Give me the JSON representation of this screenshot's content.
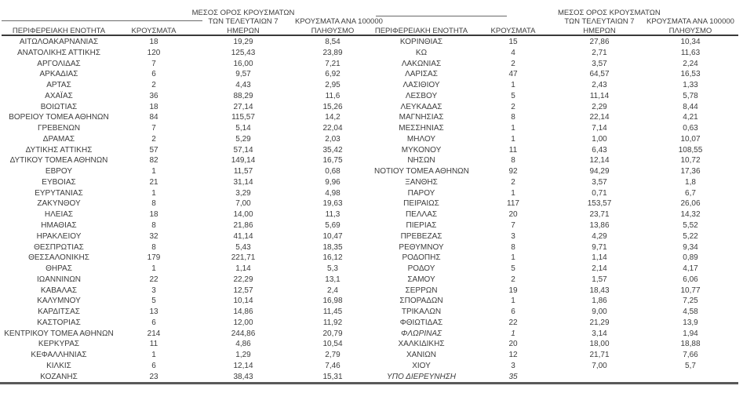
{
  "page": {
    "background": "#ffffff",
    "text_color": "#3c3c3c",
    "thin_line_color": "#6a6a6a",
    "header_line_color": "#3a3a3a",
    "bottom_line_color": "#595959"
  },
  "columns": {
    "region": "ΠΕΡΙΦΕΡΕΙΑΚΗ ΕΝΟΤΗΤΑ",
    "cases": "ΚΡΟΥΣΜΑΤΑ",
    "avg7_line1": "ΜΕΣΟΣ ΟΡΟΣ ΚΡΟΥΣΜΑΤΩΝ",
    "avg7_line2": "ΤΩΝ ΤΕΛΕΥΤΑΙΩΝ 7",
    "avg7_line3": "ΗΜΕΡΩΝ",
    "per100k_line1": "ΚΡΟΥΣΜΑΤΑ ΑΝΑ 100000",
    "per100k_line2": "ΠΛΗΘΥΣΜΟ"
  },
  "tables": [
    {
      "rows": [
        {
          "region": "ΑΙΤΩΛΟΑΚΑΡΝΑΝΙΑΣ",
          "cases": "18",
          "avg7": "19,29",
          "per100k": "8,54"
        },
        {
          "region": "ΑΝΑΤΟΛΙΚΗΣ ΑΤΤΙΚΗΣ",
          "cases": "120",
          "avg7": "125,43",
          "per100k": "23,89"
        },
        {
          "region": "ΑΡΓΟΛΙΔΑΣ",
          "cases": "7",
          "avg7": "16,00",
          "per100k": "7,21"
        },
        {
          "region": "ΑΡΚΑΔΙΑΣ",
          "cases": "6",
          "avg7": "9,57",
          "per100k": "6,92"
        },
        {
          "region": "ΑΡΤΑΣ",
          "cases": "2",
          "avg7": "4,43",
          "per100k": "2,95"
        },
        {
          "region": "ΑΧΑΪΑΣ",
          "cases": "36",
          "avg7": "88,29",
          "per100k": "11,6"
        },
        {
          "region": "ΒΟΙΩΤΙΑΣ",
          "cases": "18",
          "avg7": "27,14",
          "per100k": "15,26"
        },
        {
          "region": "ΒΟΡΕΙΟΥ ΤΟΜΕΑ ΑΘΗΝΩΝ",
          "cases": "84",
          "avg7": "115,57",
          "per100k": "14,2"
        },
        {
          "region": "ΓΡΕΒΕΝΩΝ",
          "cases": "7",
          "avg7": "5,14",
          "per100k": "22,04"
        },
        {
          "region": "ΔΡΑΜΑΣ",
          "cases": "2",
          "avg7": "5,29",
          "per100k": "2,03"
        },
        {
          "region": "ΔΥΤΙΚΗΣ ΑΤΤΙΚΗΣ",
          "cases": "57",
          "avg7": "57,14",
          "per100k": "35,42"
        },
        {
          "region": "ΔΥΤΙΚΟΥ ΤΟΜΕΑ ΑΘΗΝΩΝ",
          "cases": "82",
          "avg7": "149,14",
          "per100k": "16,75"
        },
        {
          "region": "ΕΒΡΟΥ",
          "cases": "1",
          "avg7": "11,57",
          "per100k": "0,68"
        },
        {
          "region": "ΕΥΒΟΙΑΣ",
          "cases": "21",
          "avg7": "31,14",
          "per100k": "9,96"
        },
        {
          "region": "ΕΥΡΥΤΑΝΙΑΣ",
          "cases": "1",
          "avg7": "3,29",
          "per100k": "4,98"
        },
        {
          "region": "ΖΑΚΥΝΘΟΥ",
          "cases": "8",
          "avg7": "7,00",
          "per100k": "19,63"
        },
        {
          "region": "ΗΛΕΙΑΣ",
          "cases": "18",
          "avg7": "14,00",
          "per100k": "11,3"
        },
        {
          "region": "ΗΜΑΘΙΑΣ",
          "cases": "8",
          "avg7": "21,86",
          "per100k": "5,69"
        },
        {
          "region": "ΗΡΑΚΛΕΙΟΥ",
          "cases": "32",
          "avg7": "41,14",
          "per100k": "10,47"
        },
        {
          "region": "ΘΕΣΠΡΩΤΙΑΣ",
          "cases": "8",
          "avg7": "5,43",
          "per100k": "18,35"
        },
        {
          "region": "ΘΕΣΣΑΛΟΝΙΚΗΣ",
          "cases": "179",
          "avg7": "221,71",
          "per100k": "16,12"
        },
        {
          "region": "ΘΗΡΑΣ",
          "cases": "1",
          "avg7": "1,14",
          "per100k": "5,3"
        },
        {
          "region": "ΙΩΑΝΝΙΝΩΝ",
          "cases": "22",
          "avg7": "22,29",
          "per100k": "13,1"
        },
        {
          "region": "ΚΑΒΑΛΑΣ",
          "cases": "3",
          "avg7": "12,57",
          "per100k": "2,4"
        },
        {
          "region": "ΚΑΛΥΜΝΟΥ",
          "cases": "5",
          "avg7": "10,14",
          "per100k": "16,98"
        },
        {
          "region": "ΚΑΡΔΙΤΣΑΣ",
          "cases": "13",
          "avg7": "14,86",
          "per100k": "11,45"
        },
        {
          "region": "ΚΑΣΤΟΡΙΑΣ",
          "cases": "6",
          "avg7": "12,00",
          "per100k": "11,92"
        },
        {
          "region": "ΚΕΝΤΡΙΚΟΥ ΤΟΜΕΑ ΑΘΗΝΩΝ",
          "cases": "214",
          "avg7": "244,86",
          "per100k": "20,79"
        },
        {
          "region": "ΚΕΡΚΥΡΑΣ",
          "cases": "11",
          "avg7": "4,86",
          "per100k": "10,54"
        },
        {
          "region": "ΚΕΦΑΛΛΗΝΙΑΣ",
          "cases": "1",
          "avg7": "1,29",
          "per100k": "2,79"
        },
        {
          "region": "ΚΙΛΚΙΣ",
          "cases": "6",
          "avg7": "12,14",
          "per100k": "7,46"
        },
        {
          "region": "ΚΟΖΑΝΗΣ",
          "cases": "23",
          "avg7": "38,43",
          "per100k": "15,31"
        }
      ]
    },
    {
      "rows": [
        {
          "region": "ΚΟΡΙΝΘΙΑΣ",
          "cases": "15",
          "avg7": "27,86",
          "per100k": "10,34"
        },
        {
          "region": "ΚΩ",
          "cases": "4",
          "avg7": "2,71",
          "per100k": "11,63"
        },
        {
          "region": "ΛΑΚΩΝΙΑΣ",
          "cases": "2",
          "avg7": "3,57",
          "per100k": "2,24"
        },
        {
          "region": "ΛΑΡΙΣΑΣ",
          "cases": "47",
          "avg7": "64,57",
          "per100k": "16,53"
        },
        {
          "region": "ΛΑΣΙΘΙΟΥ",
          "cases": "1",
          "avg7": "2,43",
          "per100k": "1,33"
        },
        {
          "region": "ΛΕΣΒΟΥ",
          "cases": "5",
          "avg7": "11,14",
          "per100k": "5,78"
        },
        {
          "region": "ΛΕΥΚΑΔΑΣ",
          "cases": "2",
          "avg7": "2,29",
          "per100k": "8,44"
        },
        {
          "region": "ΜΑΓΝΗΣΙΑΣ",
          "cases": "8",
          "avg7": "22,14",
          "per100k": "4,21"
        },
        {
          "region": "ΜΕΣΣΗΝΙΑΣ",
          "cases": "1",
          "avg7": "7,14",
          "per100k": "0,63"
        },
        {
          "region": "ΜΗΛΟΥ",
          "cases": "1",
          "avg7": "1,00",
          "per100k": "10,07"
        },
        {
          "region": "ΜΥΚΟΝΟΥ",
          "cases": "11",
          "avg7": "6,43",
          "per100k": "108,55"
        },
        {
          "region": "ΝΗΣΩΝ",
          "cases": "8",
          "avg7": "12,14",
          "per100k": "10,72"
        },
        {
          "region": "ΝΟΤΙΟΥ ΤΟΜΕΑ ΑΘΗΝΩΝ",
          "cases": "92",
          "avg7": "94,29",
          "per100k": "17,36"
        },
        {
          "region": "ΞΑΝΘΗΣ",
          "cases": "2",
          "avg7": "3,57",
          "per100k": "1,8"
        },
        {
          "region": "ΠΑΡΟΥ",
          "cases": "1",
          "avg7": "0,71",
          "per100k": "6,7"
        },
        {
          "region": "ΠΕΙΡΑΙΩΣ",
          "cases": "117",
          "avg7": "153,57",
          "per100k": "26,06"
        },
        {
          "region": "ΠΕΛΛΑΣ",
          "cases": "20",
          "avg7": "23,71",
          "per100k": "14,32"
        },
        {
          "region": "ΠΙΕΡΙΑΣ",
          "cases": "7",
          "avg7": "13,86",
          "per100k": "5,52"
        },
        {
          "region": "ΠΡΕΒΕΖΑΣ",
          "cases": "3",
          "avg7": "4,29",
          "per100k": "5,22"
        },
        {
          "region": "ΡΕΘΥΜΝΟΥ",
          "cases": "8",
          "avg7": "9,71",
          "per100k": "9,34"
        },
        {
          "region": "ΡΟΔΟΠΗΣ",
          "cases": "1",
          "avg7": "1,14",
          "per100k": "0,89"
        },
        {
          "region": "ΡΟΔΟΥ",
          "cases": "5",
          "avg7": "2,14",
          "per100k": "4,17"
        },
        {
          "region": "ΣΑΜΟΥ",
          "cases": "2",
          "avg7": "1,57",
          "per100k": "6,06"
        },
        {
          "region": "ΣΕΡΡΩΝ",
          "cases": "19",
          "avg7": "18,43",
          "per100k": "10,77"
        },
        {
          "region": "ΣΠΟΡΑΔΩΝ",
          "cases": "1",
          "avg7": "1,86",
          "per100k": "7,25"
        },
        {
          "region": "ΤΡΙΚΑΛΩΝ",
          "cases": "6",
          "avg7": "9,00",
          "per100k": "4,58"
        },
        {
          "region": "ΦΘΙΩΤΙΔΑΣ",
          "cases": "22",
          "avg7": "21,29",
          "per100k": "13,9"
        },
        {
          "region": "ΦΛΩΡΙΝΑΣ",
          "cases": "1",
          "avg7": "3,14",
          "per100k": "1,94",
          "italic": true
        },
        {
          "region": "ΧΑΛΚΙΔΙΚΗΣ",
          "cases": "20",
          "avg7": "18,00",
          "per100k": "18,88"
        },
        {
          "region": "ΧΑΝΙΩΝ",
          "cases": "12",
          "avg7": "21,71",
          "per100k": "7,66"
        },
        {
          "region": "ΧΙΟΥ",
          "cases": "3",
          "avg7": "7,00",
          "per100k": "5,7"
        },
        {
          "region": "ΥΠΟ ΔΙΕΡΕΥΝΗΣΗ",
          "cases": "35",
          "avg7": "",
          "per100k": "",
          "italic": true
        }
      ]
    }
  ]
}
